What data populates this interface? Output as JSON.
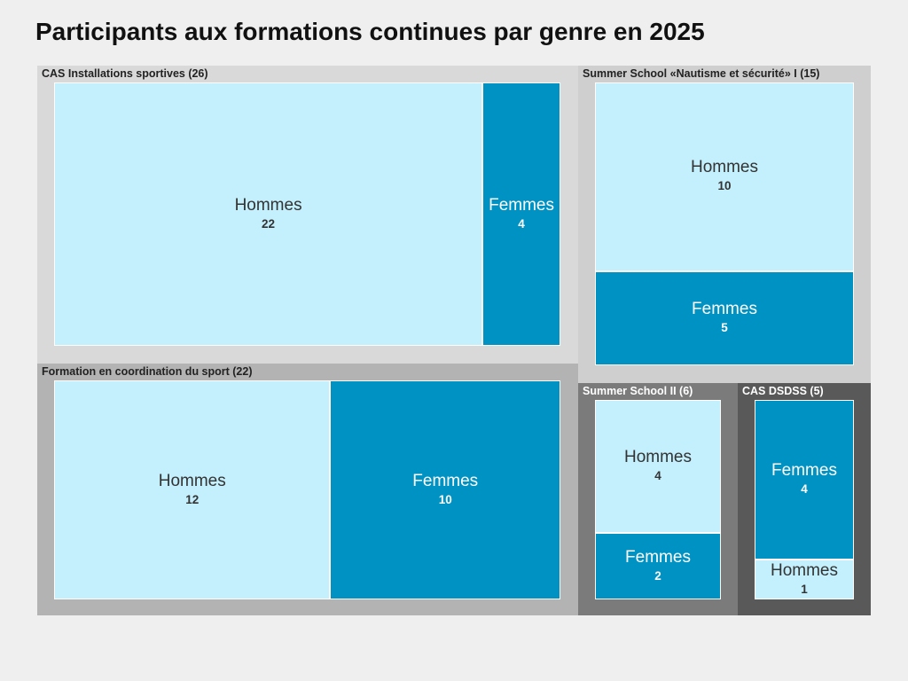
{
  "title": "Participants aux formations continues par genre en 2025",
  "chart_data": {
    "type": "treemap",
    "colors": {
      "Hommes": "#c4effd",
      "Femmes": "#0092c3"
    },
    "groups": [
      {
        "label": "CAS Installations sportives (26)",
        "name": "CAS Installations sportives",
        "total": 26,
        "color": "#d9d9d9",
        "cells": [
          {
            "name": "Hommes",
            "value": 22
          },
          {
            "name": "Femmes",
            "value": 4
          }
        ]
      },
      {
        "label": "Summer School «Nautisme et sécurité» I (15)",
        "name": "Summer School «Nautisme et sécurité» I",
        "total": 15,
        "color": "#cfcfcf",
        "cells": [
          {
            "name": "Hommes",
            "value": 10
          },
          {
            "name": "Femmes",
            "value": 5
          }
        ]
      },
      {
        "label": "Formation en coordination du sport (22)",
        "name": "Formation en coordination du sport",
        "total": 22,
        "color": "#b3b3b3",
        "cells": [
          {
            "name": "Hommes",
            "value": 12
          },
          {
            "name": "Femmes",
            "value": 10
          }
        ]
      },
      {
        "label": "Summer School II (6)",
        "name": "Summer School II",
        "total": 6,
        "color": "#7b7b7b",
        "cells": [
          {
            "name": "Hommes",
            "value": 4
          },
          {
            "name": "Femmes",
            "value": 2
          }
        ]
      },
      {
        "label": "CAS DSDSS (5)",
        "name": "CAS DSDSS",
        "total": 5,
        "color": "#595959",
        "cells": [
          {
            "name": "Femmes",
            "value": 4
          },
          {
            "name": "Hommes",
            "value": 1
          }
        ]
      }
    ]
  }
}
